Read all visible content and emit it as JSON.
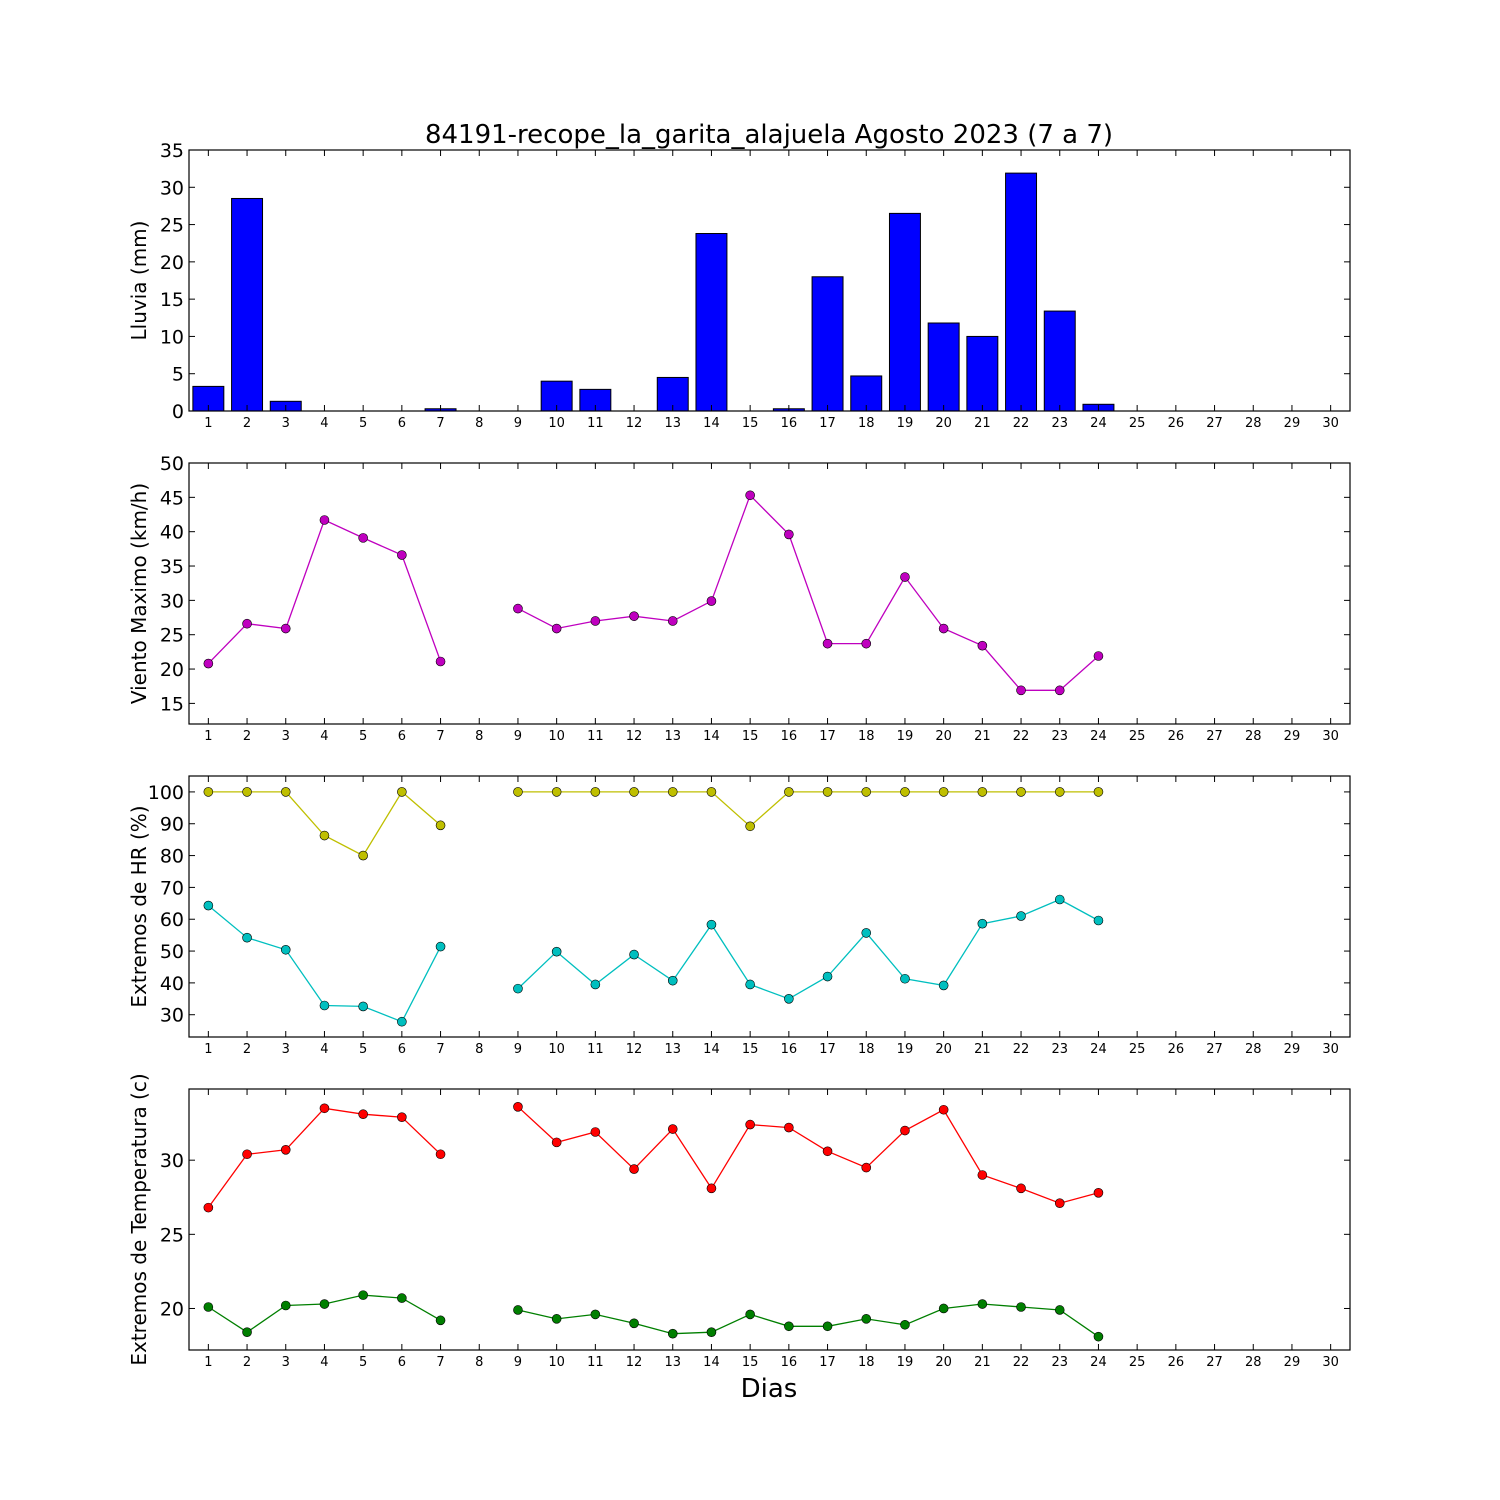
{
  "figure": {
    "title": "84191-recope_la_garita_alajuela Agosto 2023  (7 a 7)",
    "xlabel": "Dias"
  },
  "chart_data": [
    {
      "type": "bar",
      "ylabel": "Lluvia (mm)",
      "xlim": [
        0.5,
        30.5
      ],
      "ylim": [
        0,
        35
      ],
      "yticks": [
        0,
        5,
        10,
        15,
        20,
        25,
        30,
        35
      ],
      "x_tick_labels": [
        "1",
        "2",
        "3",
        "4",
        "5",
        "6",
        "7",
        "8",
        "9",
        "10",
        "11",
        "12",
        "13",
        "14",
        "15",
        "16",
        "17",
        "18",
        "19",
        "20",
        "21",
        "22",
        "23",
        "24",
        "25",
        "26",
        "27",
        "28",
        "29",
        "30"
      ],
      "grid": false,
      "series": [
        {
          "color": "#0000ff",
          "points": [
            [
              1,
              3.3
            ],
            [
              2,
              28.5
            ],
            [
              3,
              1.3
            ],
            [
              4,
              0
            ],
            [
              5,
              0
            ],
            [
              6,
              0
            ],
            [
              7,
              0.3
            ],
            [
              8,
              0
            ],
            [
              9,
              0
            ],
            [
              10,
              4.0
            ],
            [
              11,
              2.9
            ],
            [
              12,
              0
            ],
            [
              13,
              4.5
            ],
            [
              14,
              23.8
            ],
            [
              15,
              0
            ],
            [
              16,
              0.3
            ],
            [
              17,
              18.0
            ],
            [
              18,
              4.7
            ],
            [
              19,
              26.5
            ],
            [
              20,
              11.8
            ],
            [
              21,
              10.0
            ],
            [
              22,
              31.9
            ],
            [
              23,
              13.4
            ],
            [
              24,
              0.9
            ]
          ]
        }
      ]
    },
    {
      "type": "line",
      "ylabel": "Viento Maximo (km/h)",
      "xlim": [
        0.5,
        30.5
      ],
      "ylim": [
        12,
        50
      ],
      "yticks": [
        15,
        20,
        25,
        30,
        35,
        40,
        45,
        50
      ],
      "x_tick_labels": [
        "1",
        "2",
        "3",
        "4",
        "5",
        "6",
        "7",
        "8",
        "9",
        "10",
        "11",
        "12",
        "13",
        "14",
        "15",
        "16",
        "17",
        "18",
        "19",
        "20",
        "21",
        "22",
        "23",
        "24",
        "25",
        "26",
        "27",
        "28",
        "29",
        "30"
      ],
      "grid": false,
      "series": [
        {
          "color": "#bf00bf",
          "points": [
            [
              1,
              20.8
            ],
            [
              2,
              26.6
            ],
            [
              3,
              25.9
            ],
            [
              4,
              41.7
            ],
            [
              5,
              39.1
            ],
            [
              6,
              36.6
            ],
            [
              7,
              21.1
            ],
            [
              8,
              null
            ],
            [
              9,
              28.8
            ],
            [
              10,
              25.9
            ],
            [
              11,
              27.0
            ],
            [
              12,
              27.7
            ],
            [
              13,
              27.0
            ],
            [
              14,
              29.9
            ],
            [
              15,
              45.3
            ],
            [
              16,
              39.6
            ],
            [
              17,
              23.7
            ],
            [
              18,
              23.7
            ],
            [
              19,
              33.4
            ],
            [
              20,
              25.9
            ],
            [
              21,
              23.4
            ],
            [
              22,
              16.9
            ],
            [
              23,
              16.9
            ],
            [
              24,
              21.9
            ]
          ]
        }
      ]
    },
    {
      "type": "line",
      "ylabel": "Extremos de HR (%)",
      "xlim": [
        0.5,
        30.5
      ],
      "ylim": [
        23,
        105
      ],
      "yticks": [
        30,
        40,
        50,
        60,
        70,
        80,
        90,
        100
      ],
      "x_tick_labels": [
        "1",
        "2",
        "3",
        "4",
        "5",
        "6",
        "7",
        "8",
        "9",
        "10",
        "11",
        "12",
        "13",
        "14",
        "15",
        "16",
        "17",
        "18",
        "19",
        "20",
        "21",
        "22",
        "23",
        "24",
        "25",
        "26",
        "27",
        "28",
        "29",
        "30"
      ],
      "grid": false,
      "series": [
        {
          "color": "#bfbf00",
          "points": [
            [
              1,
              100
            ],
            [
              2,
              100
            ],
            [
              3,
              100
            ],
            [
              4,
              86.3
            ],
            [
              5,
              80
            ],
            [
              6,
              100
            ],
            [
              7,
              89.5
            ],
            [
              8,
              null
            ],
            [
              9,
              100
            ],
            [
              10,
              100
            ],
            [
              11,
              100
            ],
            [
              12,
              100
            ],
            [
              13,
              100
            ],
            [
              14,
              100
            ],
            [
              15,
              89.2
            ],
            [
              16,
              100
            ],
            [
              17,
              100
            ],
            [
              18,
              100
            ],
            [
              19,
              100
            ],
            [
              20,
              100
            ],
            [
              21,
              100
            ],
            [
              22,
              100
            ],
            [
              23,
              100
            ],
            [
              24,
              100
            ]
          ]
        },
        {
          "color": "#00bfbf",
          "points": [
            [
              1,
              64.3
            ],
            [
              2,
              54.2
            ],
            [
              3,
              50.4
            ],
            [
              4,
              32.9
            ],
            [
              5,
              32.6
            ],
            [
              6,
              27.8
            ],
            [
              7,
              51.4
            ],
            [
              8,
              null
            ],
            [
              9,
              38.2
            ],
            [
              10,
              49.8
            ],
            [
              11,
              39.5
            ],
            [
              12,
              48.9
            ],
            [
              13,
              40.7
            ],
            [
              14,
              58.3
            ],
            [
              15,
              39.5
            ],
            [
              16,
              35.0
            ],
            [
              17,
              42.0
            ],
            [
              18,
              55.7
            ],
            [
              19,
              41.3
            ],
            [
              20,
              39.2
            ],
            [
              21,
              58.6
            ],
            [
              22,
              61.0
            ],
            [
              23,
              66.2
            ],
            [
              24,
              59.6
            ]
          ]
        }
      ]
    },
    {
      "type": "line",
      "ylabel": "Extremos de Temperatura (c)",
      "xlim": [
        0.5,
        30.5
      ],
      "ylim": [
        17.2,
        34.8
      ],
      "yticks": [
        20,
        25,
        30
      ],
      "x_tick_labels": [
        "1",
        "2",
        "3",
        "4",
        "5",
        "6",
        "7",
        "8",
        "9",
        "10",
        "11",
        "12",
        "13",
        "14",
        "15",
        "16",
        "17",
        "18",
        "19",
        "20",
        "21",
        "22",
        "23",
        "24",
        "25",
        "26",
        "27",
        "28",
        "29",
        "30"
      ],
      "grid": false,
      "series": [
        {
          "color": "#ff0000",
          "points": [
            [
              1,
              26.8
            ],
            [
              2,
              30.4
            ],
            [
              3,
              30.7
            ],
            [
              4,
              33.5
            ],
            [
              5,
              33.1
            ],
            [
              6,
              32.9
            ],
            [
              7,
              30.4
            ],
            [
              8,
              null
            ],
            [
              9,
              33.6
            ],
            [
              10,
              31.2
            ],
            [
              11,
              31.9
            ],
            [
              12,
              29.4
            ],
            [
              13,
              32.1
            ],
            [
              14,
              28.1
            ],
            [
              15,
              32.4
            ],
            [
              16,
              32.2
            ],
            [
              17,
              30.6
            ],
            [
              18,
              29.5
            ],
            [
              19,
              32.0
            ],
            [
              20,
              33.4
            ],
            [
              21,
              29.0
            ],
            [
              22,
              28.1
            ],
            [
              23,
              27.1
            ],
            [
              24,
              27.8
            ]
          ]
        },
        {
          "color": "#007f00",
          "points": [
            [
              1,
              20.1
            ],
            [
              2,
              18.4
            ],
            [
              3,
              20.2
            ],
            [
              4,
              20.3
            ],
            [
              5,
              20.9
            ],
            [
              6,
              20.7
            ],
            [
              7,
              19.2
            ],
            [
              8,
              null
            ],
            [
              9,
              19.9
            ],
            [
              10,
              19.3
            ],
            [
              11,
              19.6
            ],
            [
              12,
              19.0
            ],
            [
              13,
              18.3
            ],
            [
              14,
              18.4
            ],
            [
              15,
              19.6
            ],
            [
              16,
              18.8
            ],
            [
              17,
              18.8
            ],
            [
              18,
              19.3
            ],
            [
              19,
              18.9
            ],
            [
              20,
              20.0
            ],
            [
              21,
              20.3
            ],
            [
              22,
              20.1
            ],
            [
              23,
              19.9
            ],
            [
              24,
              18.1
            ]
          ]
        }
      ]
    }
  ]
}
